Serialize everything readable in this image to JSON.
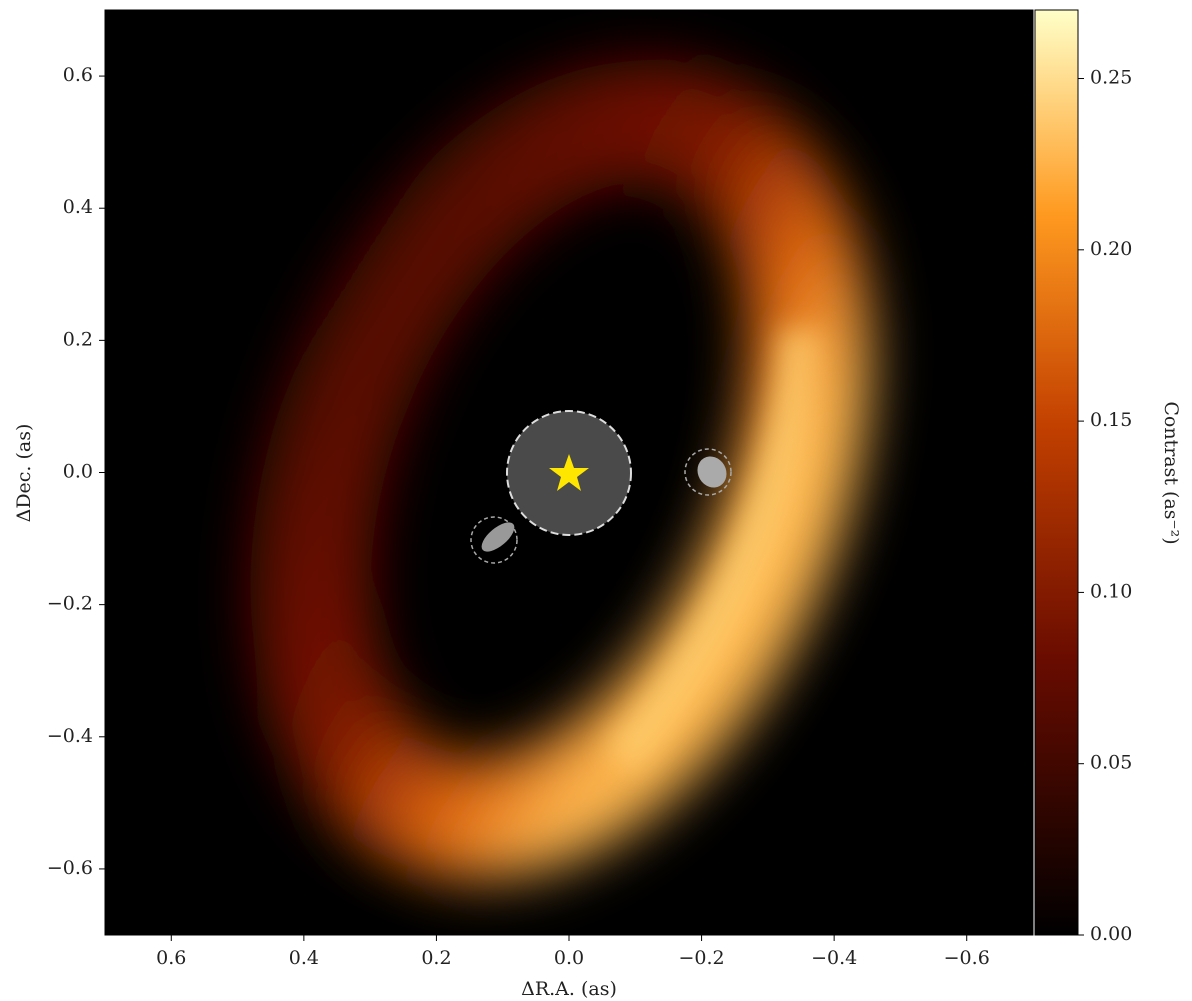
{
  "chart_data": {
    "type": "image",
    "xlabel": "ΔR.A. (as)",
    "ylabel": "ΔDec. (as)",
    "colorbar_label": "Contrast (as⁻²)",
    "xlim": [
      0.7,
      -0.7
    ],
    "ylim": [
      -0.7,
      0.7
    ],
    "xticks": [
      0.6,
      0.4,
      0.2,
      {
        "value": 0,
        "label": "0.0"
      },
      {
        "value": -0.2,
        "label": "−0.2"
      },
      {
        "value": -0.4,
        "label": "−0.4"
      },
      {
        "value": -0.6,
        "label": "−0.6"
      }
    ],
    "yticks": [
      {
        "value": -0.6,
        "label": "−0.6"
      },
      {
        "value": -0.4,
        "label": "−0.4"
      },
      {
        "value": -0.2,
        "label": "−0.2"
      },
      {
        "value": 0,
        "label": "0.0"
      },
      0.2,
      0.4,
      0.6
    ],
    "clim": [
      0,
      0.27
    ],
    "cticks": [
      {
        "value": 0,
        "label": "0.00"
      },
      0.05,
      {
        "value": 0.1,
        "label": "0.10"
      },
      0.15,
      {
        "value": 0.2,
        "label": "0.20"
      },
      0.25
    ]
  }
}
